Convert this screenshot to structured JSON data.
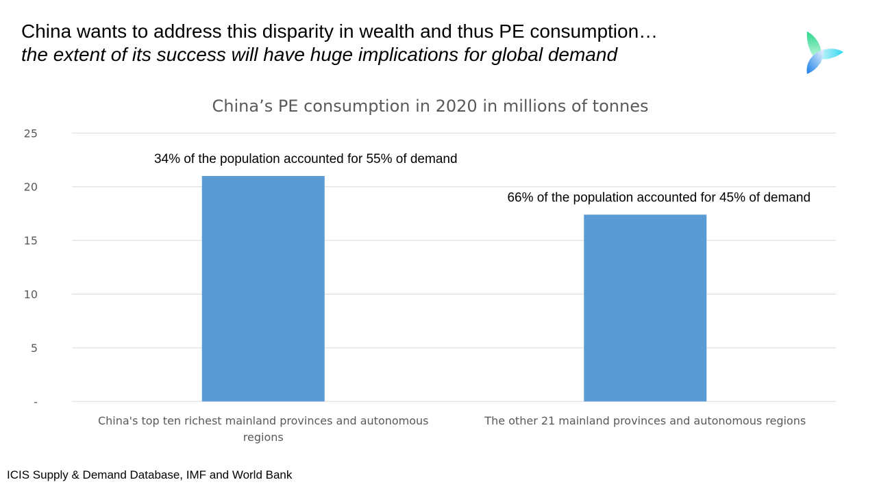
{
  "heading": {
    "line1": "China  wants to address this disparity in wealth and thus PE consumption…",
    "line2": "the extent of its success will have huge implications for global demand"
  },
  "source": "ICIS Supply & Demand Database, IMF and World Bank",
  "logo": {
    "icon": "tri-leaf-logo",
    "colors": [
      "#2bd68a",
      "#33d6f0",
      "#1a7fe8"
    ]
  },
  "chart_data": {
    "type": "bar",
    "title": "China’s PE consumption in 2020 in millions of tonnes",
    "categories": [
      [
        "China's top ten richest mainland provinces and autonomous",
        "regions"
      ],
      [
        "The other 21 mainland provinces and autonomous regions"
      ]
    ],
    "values": [
      21.0,
      17.4
    ],
    "annotations": [
      "34% of the population  accounted  for 55% of demand",
      "66% of the population  accounted  for 45% of demand"
    ],
    "yticks": [
      "-",
      "5",
      "10",
      "15",
      "20",
      "25"
    ],
    "ylim": [
      0,
      25
    ],
    "grid": true,
    "bar_color": "#5b9bd5",
    "grid_color": "#d9d9d9"
  }
}
